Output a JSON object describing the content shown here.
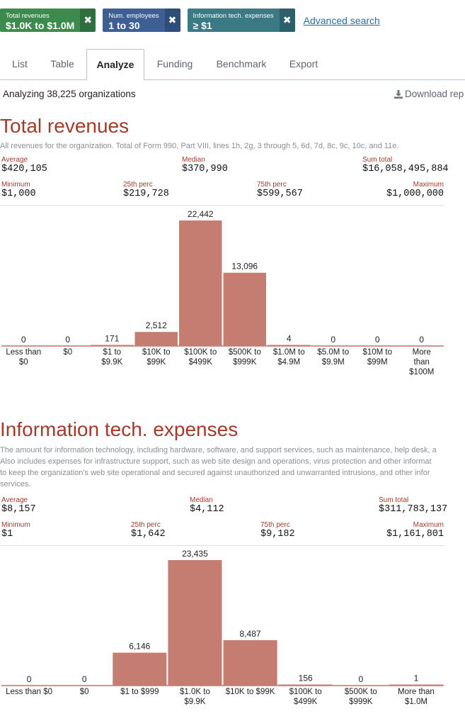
{
  "filters": [
    {
      "caption": "Total revenues",
      "value": "$1.0K to $1.0M",
      "color": "#3d8a4f"
    },
    {
      "caption": "Num. employees",
      "value": "1 to 30",
      "color": "#3d5f93"
    },
    {
      "caption": "Information tech. expenses",
      "value": "≥ $1",
      "color": "#3b7a84"
    }
  ],
  "filter_remove_glyph": "✖",
  "advanced_search": "Advanced search",
  "tabs": [
    "List",
    "Table",
    "Analyze",
    "Funding",
    "Benchmark",
    "Export"
  ],
  "active_tab": "Analyze",
  "summary": {
    "analyzing": "Analyzing 38,225 organizations",
    "download": "Download rep"
  },
  "accent_color": "#a33a2c",
  "bar_color": "#c47d70",
  "sections": [
    {
      "title": "Total revenues",
      "description": [
        "All revenues for the organization. Total of Form 990, Part VIII, lines 1h, 2g, 3 through 5, 6d, 7d, 8c, 9c, 10c, and 11e."
      ],
      "stats_row1": [
        {
          "label": "Average",
          "value": "$420,105"
        },
        {
          "label": "Median",
          "value": "$370,990"
        },
        {
          "label": "Sum total",
          "value": "$16,058,495,884"
        }
      ],
      "stats_row2": [
        {
          "label": "Minimum",
          "value": "$1,000"
        },
        {
          "label": "25th perc",
          "value": "$219,728"
        },
        {
          "label": "75th perc",
          "value": "$599,567"
        },
        {
          "label": "Maximum",
          "value": "$1,000,000"
        }
      ],
      "chart_data": {
        "type": "bar",
        "categories": [
          "Less than $0",
          "$0",
          "$1 to $9.9K",
          "$10K to $99K",
          "$100K to $499K",
          "$500K to $999K",
          "$1.0M to $4.9M",
          "$5.0M to $9.9M",
          "$10M to $99M",
          "More than $100M"
        ],
        "category_lines": [
          [
            "Less than",
            "$0"
          ],
          [
            "$0"
          ],
          [
            "$1 to",
            "$9.9K"
          ],
          [
            "$10K to",
            "$99K"
          ],
          [
            "$100K to",
            "$499K"
          ],
          [
            "$500K to",
            "$999K"
          ],
          [
            "$1.0M to",
            "$4.9M"
          ],
          [
            "$5.0M to",
            "$9.9M"
          ],
          [
            "$10M to",
            "$99M"
          ],
          [
            "More",
            "than",
            "$100M"
          ]
        ],
        "values": [
          0,
          0,
          171,
          2512,
          22442,
          13096,
          4,
          0,
          0,
          0
        ],
        "labels": [
          "0",
          "0",
          "171",
          "2,512",
          "22,442",
          "13,096",
          "4",
          "0",
          "0",
          "0"
        ]
      }
    },
    {
      "title": "Information tech. expenses",
      "description": [
        "The amount for information technology, including hardware, software, and support services, such as maintenance, help desk, a",
        "Also includes expenses for infrastructure support, such as web site design and operations, virus protection and other informat",
        "to keep the organization's web site operational and secured against unauthorized and unwarranted intrusions, and other infor",
        "services."
      ],
      "stats_row1": [
        {
          "label": "Average",
          "value": "$8,157"
        },
        {
          "label": "Median",
          "value": "$4,112"
        },
        {
          "label": "Sum total",
          "value": "$311,783,137"
        }
      ],
      "stats_row2": [
        {
          "label": "Minimum",
          "value": "$1"
        },
        {
          "label": "25th perc",
          "value": "$1,642"
        },
        {
          "label": "75th perc",
          "value": "$9,182"
        },
        {
          "label": "Maximum",
          "value": "$1,161,801"
        }
      ],
      "chart_data": {
        "type": "bar",
        "categories": [
          "Less than $0",
          "$0",
          "$1 to $999",
          "$1.0K to $9.9K",
          "$10K to $99K",
          "$100K to $499K",
          "$500K to $999K",
          "More than $1.0M"
        ],
        "category_lines": [
          [
            "Less than $0"
          ],
          [
            "$0"
          ],
          [
            "$1 to $999"
          ],
          [
            "$1.0K to",
            "$9.9K"
          ],
          [
            "$10K to $99K"
          ],
          [
            "$100K to",
            "$499K"
          ],
          [
            "$500K to",
            "$999K"
          ],
          [
            "More than",
            "$1.0M"
          ]
        ],
        "values": [
          0,
          0,
          6146,
          23435,
          8487,
          156,
          0,
          1
        ],
        "labels": [
          "0",
          "0",
          "6,146",
          "23,435",
          "8,487",
          "156",
          "0",
          "1"
        ]
      }
    }
  ]
}
